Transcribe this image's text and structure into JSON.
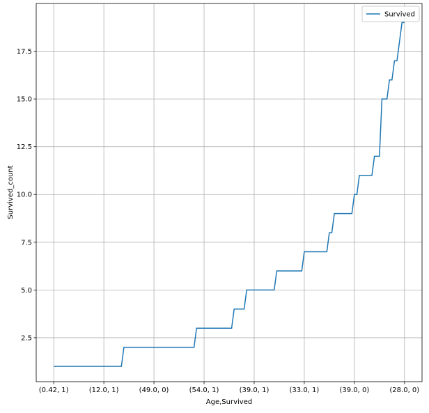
{
  "chart_data": {
    "type": "line",
    "xlabel": "Age,Survived",
    "ylabel": "Survived_count",
    "categories": [
      "(0.42, 1)",
      null,
      null,
      null,
      null,
      null,
      null,
      null,
      null,
      null,
      null,
      null,
      null,
      null,
      null,
      null,
      null,
      null,
      null,
      null,
      "(12.0, 1)",
      null,
      null,
      null,
      null,
      null,
      null,
      null,
      null,
      null,
      null,
      null,
      null,
      null,
      null,
      null,
      null,
      null,
      null,
      null,
      "(49.0, 0)",
      null,
      null,
      null,
      null,
      null,
      null,
      null,
      null,
      null,
      null,
      null,
      null,
      null,
      null,
      null,
      null,
      null,
      null,
      null,
      "(54.0, 1)",
      null,
      null,
      null,
      null,
      null,
      null,
      null,
      null,
      null,
      null,
      null,
      null,
      null,
      null,
      null,
      null,
      null,
      null,
      null,
      "(39.0, 1)",
      null,
      null,
      null,
      null,
      null,
      null,
      null,
      null,
      null,
      null,
      null,
      null,
      null,
      null,
      null,
      null,
      null,
      null,
      null,
      "(33.0, 1)",
      null,
      null,
      null,
      null,
      null,
      null,
      null,
      null,
      null,
      null,
      null,
      null,
      null,
      null,
      null,
      null,
      null,
      null,
      null,
      "(39.0, 0)",
      null,
      null,
      null,
      null,
      null,
      null,
      null,
      null,
      null,
      null,
      null,
      null,
      null,
      null,
      null,
      null,
      null,
      null,
      null,
      "(28.0, 0)"
    ],
    "series": [
      {
        "name": "Survived",
        "color": "#1f77b4",
        "values": [
          1,
          1,
          1,
          1,
          1,
          1,
          1,
          1,
          1,
          1,
          1,
          1,
          1,
          1,
          1,
          1,
          1,
          1,
          1,
          1,
          1,
          1,
          1,
          1,
          1,
          1,
          1,
          1,
          2,
          2,
          2,
          2,
          2,
          2,
          2,
          2,
          2,
          2,
          2,
          2,
          2,
          2,
          2,
          2,
          2,
          2,
          2,
          2,
          2,
          2,
          2,
          2,
          2,
          2,
          2,
          2,
          2,
          3,
          3,
          3,
          3,
          3,
          3,
          3,
          3,
          3,
          3,
          3,
          3,
          3,
          3,
          3,
          4,
          4,
          4,
          4,
          4,
          5,
          5,
          5,
          5,
          5,
          5,
          5,
          5,
          5,
          5,
          5,
          5,
          6,
          6,
          6,
          6,
          6,
          6,
          6,
          6,
          6,
          6,
          6,
          7,
          7,
          7,
          7,
          7,
          7,
          7,
          7,
          7,
          7,
          8,
          8,
          9,
          9,
          9,
          9,
          9,
          9,
          9,
          9,
          10,
          10,
          11,
          11,
          11,
          11,
          11,
          11,
          12,
          12,
          12,
          15,
          15,
          15,
          16,
          16,
          17,
          17,
          18,
          19,
          19
        ]
      }
    ],
    "ylim": [
      0.2,
      20
    ],
    "yticks": [
      2.5,
      {
        "value": 5,
        "label": "5.0"
      },
      7.5,
      {
        "value": 10,
        "label": "10.0"
      },
      12.5,
      {
        "value": 15,
        "label": "15.0"
      },
      17.5
    ],
    "grid": true,
    "legend": "upper right"
  }
}
